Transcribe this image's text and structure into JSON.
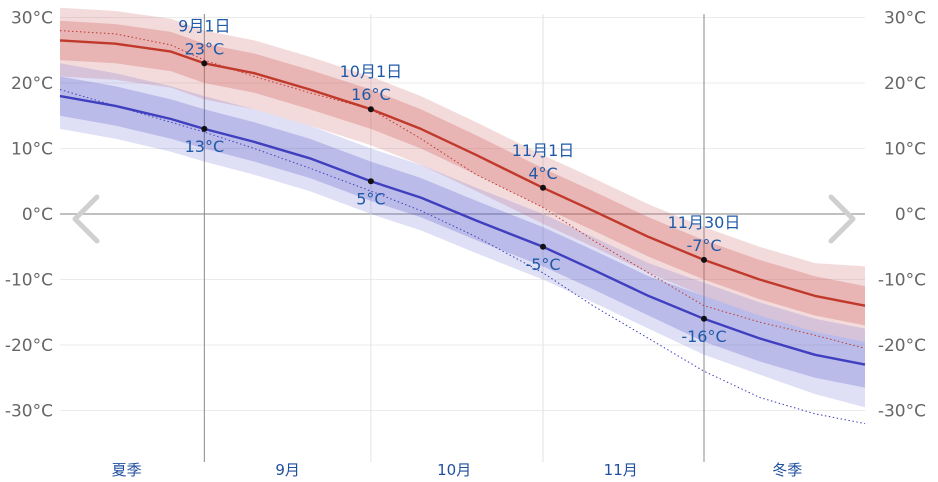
{
  "chart_data": {
    "type": "line",
    "y_unit": "°C",
    "ylim": [
      -32,
      30
    ],
    "y_ticks": [
      30,
      20,
      10,
      0,
      -10,
      -20,
      -30
    ],
    "y_tick_labels": [
      "30°C",
      "20°C",
      "10°C",
      "0°C",
      "-10°C",
      "-20°C",
      "-30°C"
    ],
    "x_domain": [
      "2020-08-06",
      "2020-12-29"
    ],
    "month_dividers": [
      "2020-09-01",
      "2020-10-01",
      "2020-11-01",
      "2020-11-30"
    ],
    "bottom_labels": [
      {
        "text": "夏季",
        "date": "2020-08-18"
      },
      {
        "text": "9月",
        "date": "2020-09-16"
      },
      {
        "text": "10月",
        "date": "2020-10-16"
      },
      {
        "text": "11月",
        "date": "2020-11-15"
      },
      {
        "text": "冬季",
        "date": "2020-12-15"
      }
    ],
    "grid": true,
    "x": [
      "2020-08-06",
      "2020-08-16",
      "2020-08-26",
      "2020-09-01",
      "2020-09-10",
      "2020-09-20",
      "2020-10-01",
      "2020-10-10",
      "2020-10-20",
      "2020-11-01",
      "2020-11-10",
      "2020-11-20",
      "2020-11-30",
      "2020-12-10",
      "2020-12-20",
      "2020-12-29"
    ],
    "series": [
      {
        "color": "#c0392b",
        "mean": [
          26.5,
          26.0,
          24.8,
          23.0,
          21.5,
          19.0,
          16.0,
          13.0,
          9.0,
          4.0,
          0.5,
          -3.5,
          -7.0,
          -10.0,
          -12.5,
          -14.0
        ],
        "inner_lo": [
          23.5,
          23.0,
          21.8,
          20.0,
          18.5,
          16.0,
          13.0,
          10.0,
          6.0,
          1.0,
          -2.5,
          -6.5,
          -10.0,
          -13.0,
          -15.5,
          -17.0
        ],
        "inner_hi": [
          29.5,
          29.0,
          27.8,
          26.0,
          24.5,
          22.0,
          19.0,
          16.0,
          12.0,
          7.0,
          3.5,
          -0.5,
          -4.0,
          -7.0,
          -9.5,
          -11.0
        ],
        "outer_lo": [
          21.0,
          20.5,
          19.3,
          17.5,
          16.0,
          13.5,
          10.5,
          7.5,
          3.5,
          -1.5,
          -5.0,
          -9.0,
          -12.5,
          -15.5,
          -18.0,
          -19.5
        ],
        "outer_hi": [
          31.5,
          31.0,
          29.8,
          28.0,
          26.5,
          24.0,
          21.0,
          18.0,
          14.0,
          9.0,
          5.5,
          1.5,
          -2.0,
          -5.0,
          -7.5,
          -8.0
        ],
        "dotted": [
          28.0,
          27.5,
          25.8,
          23.5,
          21.0,
          18.5,
          16.0,
          11.5,
          6.0,
          1.0,
          -4.0,
          -9.0,
          -14.0,
          -16.5,
          -18.5,
          -20.5
        ]
      },
      {
        "color": "#3f3fbf",
        "mean": [
          18.0,
          16.5,
          14.5,
          13.0,
          11.0,
          8.5,
          5.0,
          2.5,
          -1.0,
          -5.0,
          -8.5,
          -12.5,
          -16.0,
          -19.0,
          -21.5,
          -23.0
        ],
        "inner_lo": [
          15.0,
          13.5,
          11.5,
          10.0,
          8.0,
          5.5,
          2.0,
          -0.5,
          -4.0,
          -8.0,
          -11.5,
          -15.5,
          -19.5,
          -22.5,
          -25.0,
          -26.5
        ],
        "inner_hi": [
          21.0,
          19.5,
          17.5,
          16.0,
          14.0,
          11.5,
          8.0,
          5.5,
          2.0,
          -2.0,
          -5.5,
          -9.5,
          -12.5,
          -15.5,
          -18.0,
          -19.5
        ],
        "outer_lo": [
          13.0,
          11.5,
          9.5,
          8.0,
          6.0,
          3.5,
          0.0,
          -2.5,
          -6.0,
          -10.0,
          -13.5,
          -17.5,
          -21.5,
          -24.5,
          -27.5,
          -29.5
        ],
        "outer_hi": [
          23.0,
          21.5,
          19.5,
          18.0,
          16.0,
          13.5,
          10.0,
          7.5,
          4.0,
          0.0,
          -3.5,
          -7.5,
          -10.5,
          -13.5,
          -16.0,
          -17.5
        ],
        "dotted": [
          19.0,
          16.5,
          14.0,
          12.5,
          10.0,
          7.0,
          3.5,
          0.5,
          -3.5,
          -9.0,
          -14.0,
          -19.0,
          -24.0,
          -28.0,
          -30.5,
          -32.0
        ]
      }
    ],
    "annotations": [
      {
        "date": "2020-09-01",
        "y": 23,
        "label": "23°C",
        "date_label": "9月1日",
        "position": "above"
      },
      {
        "date": "2020-10-01",
        "y": 16,
        "label": "16°C",
        "date_label": "10月1日",
        "position": "above"
      },
      {
        "date": "2020-11-01",
        "y": 4,
        "label": "4°C",
        "date_label": "11月1日",
        "position": "above"
      },
      {
        "date": "2020-11-30",
        "y": -7,
        "label": "-7°C",
        "date_label": "11月30日",
        "position": "above"
      },
      {
        "date": "2020-09-01",
        "y": 13,
        "label": "13°C",
        "date_label": "",
        "position": "below"
      },
      {
        "date": "2020-10-01",
        "y": 5,
        "label": "5°C",
        "date_label": "",
        "position": "below"
      },
      {
        "date": "2020-11-01",
        "y": -5,
        "label": "-5°C",
        "date_label": "",
        "position": "below"
      },
      {
        "date": "2020-11-30",
        "y": -16,
        "label": "-16°C",
        "date_label": "",
        "position": "below"
      }
    ]
  },
  "nav": {
    "prev_icon": "chevron-left-icon",
    "next_icon": "chevron-right-icon"
  }
}
